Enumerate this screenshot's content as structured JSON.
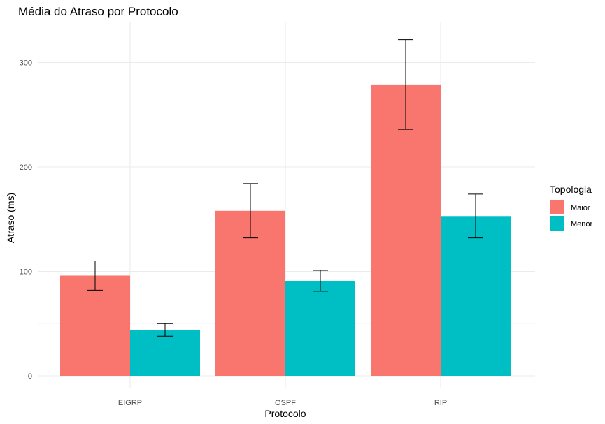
{
  "chart_data": {
    "type": "bar",
    "title": "Média do Atraso por Protocolo",
    "xlabel": "Protocolo",
    "ylabel": "Atraso (ms)",
    "categories": [
      "EIGRP",
      "OSPF",
      "RIP"
    ],
    "ylim": [
      0,
      335
    ],
    "yticks": [
      0,
      100,
      200,
      300
    ],
    "grid": true,
    "legend": {
      "title": "Topologia",
      "position": "right"
    },
    "series": [
      {
        "name": "Maior",
        "color": "#F8766D",
        "values": [
          96,
          158,
          279
        ],
        "error_low": [
          82,
          132,
          236
        ],
        "error_high": [
          110,
          184,
          322
        ]
      },
      {
        "name": "Menor",
        "color": "#00BFC4",
        "values": [
          44,
          91,
          153
        ],
        "error_low": [
          38,
          81,
          132
        ],
        "error_high": [
          50,
          101,
          174
        ]
      }
    ]
  }
}
